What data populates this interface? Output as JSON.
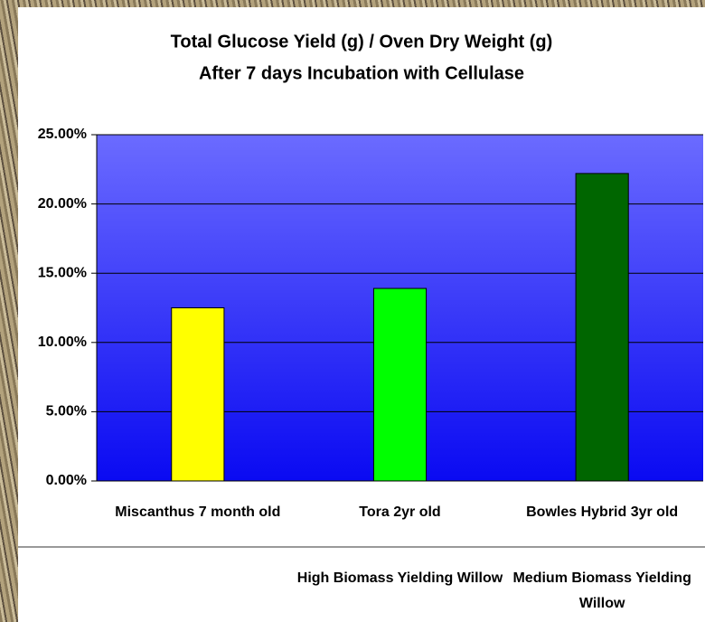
{
  "chart_data": {
    "type": "bar",
    "title": "Total Glucose Yield (g) / Oven Dry Weight (g)",
    "subtitle": "After 7 days Incubation with Cellulase",
    "categories": [
      "Miscanthus 7 month old",
      "Tora 2yr old",
      "Bowles Hybrid 3yr old"
    ],
    "subcategories": [
      null,
      "High Biomass Yielding Willow",
      "Medium Biomass Yielding Willow"
    ],
    "values": [
      12.5,
      13.9,
      22.2
    ],
    "colors": [
      "#ffff00",
      "#00ff00",
      "#006600"
    ],
    "ylim": [
      0,
      25
    ],
    "yticks": [
      {
        "value": 0,
        "label": "0.00%"
      },
      {
        "value": 5,
        "label": "5.00%"
      },
      {
        "value": 10,
        "label": "10.00%"
      },
      {
        "value": 15,
        "label": "15.00%"
      },
      {
        "value": 20,
        "label": "20.00%"
      },
      {
        "value": 25,
        "label": "25.00%"
      }
    ],
    "grid": true
  }
}
